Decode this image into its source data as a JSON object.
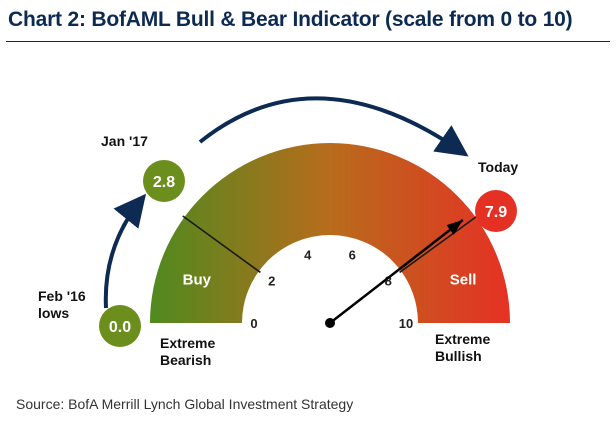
{
  "chart_data": {
    "type": "gauge",
    "title": "Chart 2: BofAML Bull & Bear Indicator (scale from 0 to 10)",
    "scale": {
      "min": 0,
      "max": 10,
      "ticks": [
        "0",
        "2",
        "4",
        "6",
        "8",
        "10"
      ]
    },
    "zones": [
      {
        "label": "Buy",
        "from": 0,
        "to": 2,
        "color": "#4f8a1f"
      },
      {
        "label": "Sell",
        "from": 8,
        "to": 10,
        "color": "#e53124"
      }
    ],
    "gradient": {
      "start": "#4f8a1f",
      "mid": "#b86c1c",
      "end": "#e53124"
    },
    "readings": [
      {
        "label": "Feb '16\nlows",
        "value": 0.0,
        "display": "0.0",
        "color": "#6b8e1d"
      },
      {
        "label": "Jan '17",
        "value": 2.8,
        "display": "2.8",
        "color": "#6b8e1d"
      },
      {
        "label": "Today",
        "value": 7.9,
        "display": "7.9",
        "color": "#e53124"
      }
    ],
    "extremes": {
      "left": "Extreme\nBearish",
      "right": "Extreme\nBullish"
    },
    "needle_value": 7.9,
    "arrow_color": "#0d2a52"
  },
  "source": "Source: BofA Merrill Lynch Global Investment Strategy"
}
